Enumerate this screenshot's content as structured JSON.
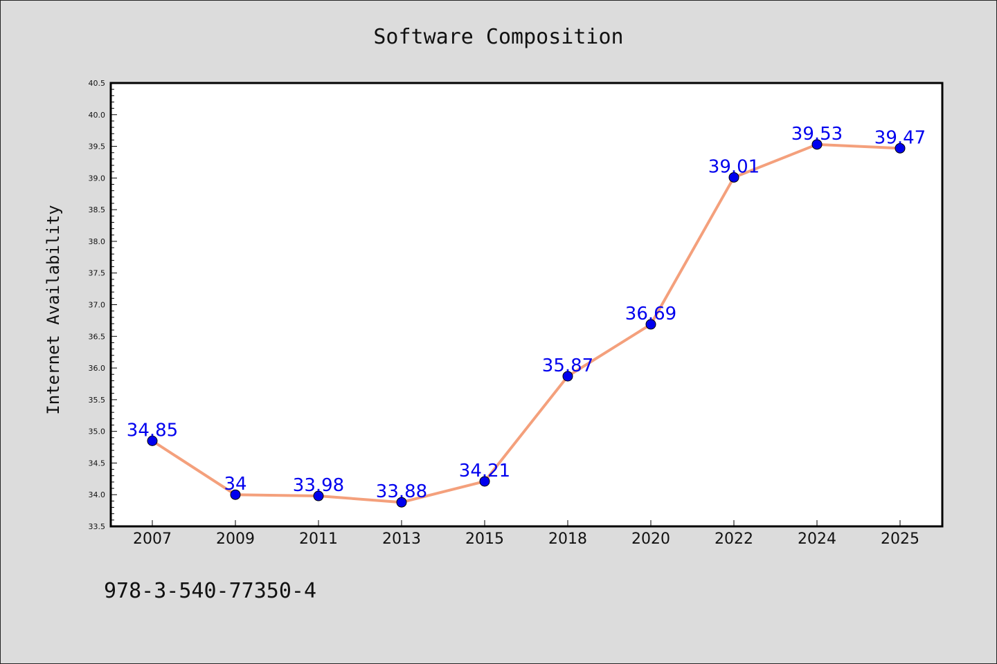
{
  "footer_text": "978-3-540-77350-4",
  "colors": {
    "background": "#dcdcdc",
    "plot_background": "#ffffff",
    "line": "#f4a07c",
    "marker": "#0000ee",
    "data_label": "#0000ee"
  },
  "chart_data": {
    "type": "line",
    "title": "Software Composition",
    "xlabel": "",
    "ylabel": "Internet Availability",
    "categories": [
      "2007",
      "2009",
      "2011",
      "2013",
      "2015",
      "2018",
      "2020",
      "2022",
      "2024",
      "2025"
    ],
    "series": [
      {
        "values": [
          34.85,
          34,
          33.98,
          33.88,
          34.21,
          35.87,
          36.69,
          39.01,
          39.53,
          39.47
        ],
        "labels": [
          "34.85",
          "34",
          "33.98",
          "33.88",
          "34.21",
          "35.87",
          "36.69",
          "39.01",
          "39.53",
          "39.47"
        ]
      }
    ],
    "ylim": [
      33.5,
      40.5
    ],
    "yticks": [
      "33.5",
      "34.0",
      "34.5",
      "35.0",
      "35.5",
      "36.0",
      "36.5",
      "37.0",
      "37.5",
      "38.0",
      "38.5",
      "39.0",
      "39.5",
      "40.0",
      "40.5"
    ],
    "grid": false,
    "legend": "none"
  }
}
